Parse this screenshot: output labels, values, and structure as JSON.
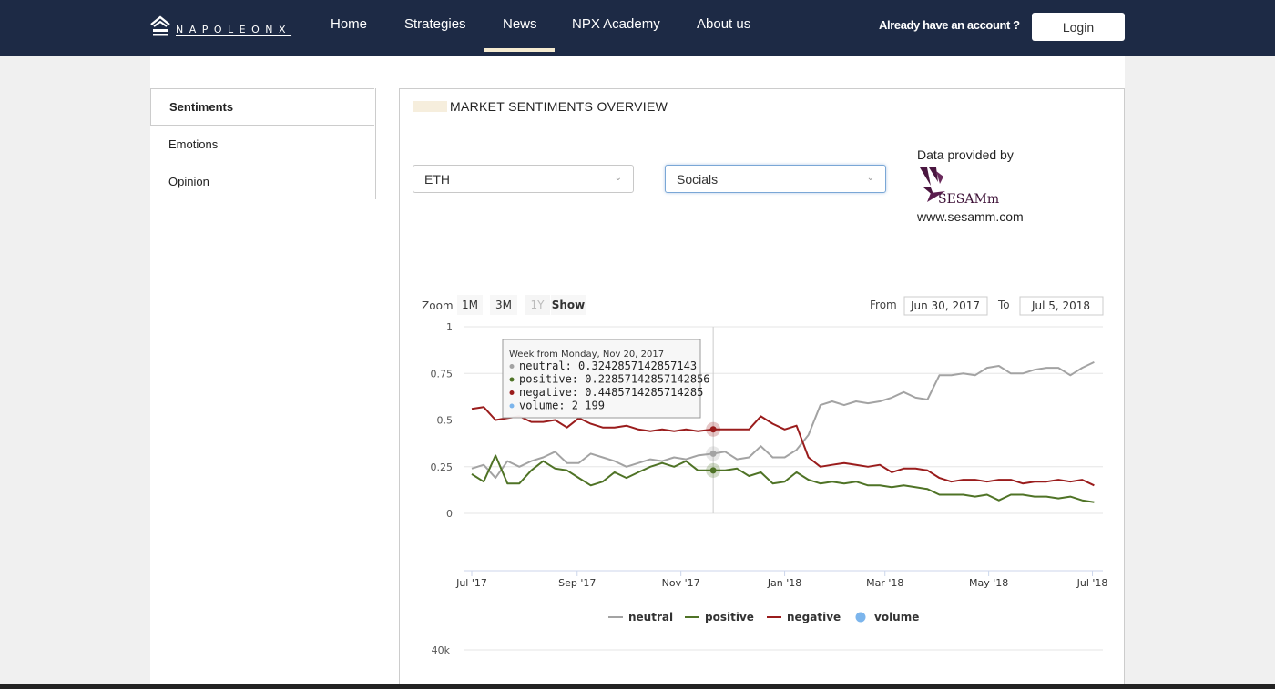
{
  "nav": {
    "logo_text": "NAPOLEONX",
    "items": [
      {
        "label": "Home"
      },
      {
        "label": "Strategies"
      },
      {
        "label": "News"
      },
      {
        "label": "NPX Academy"
      },
      {
        "label": "About us"
      }
    ],
    "active": "News",
    "account_text": "Already have an account ?",
    "login_label": "Login"
  },
  "sidebar": {
    "items": [
      {
        "label": "Sentiments"
      },
      {
        "label": "Emotions"
      },
      {
        "label": "Opinion"
      }
    ],
    "active": "Sentiments"
  },
  "panel": {
    "title": "MARKET SENTIMENTS OVERVIEW",
    "asset_select": {
      "value": "ETH"
    },
    "source_select": {
      "value": "Socials"
    },
    "provided_by": "Data provided by",
    "provider_logo_text": "SESAMm",
    "provider_url": "www.sesamm.com"
  },
  "chart_controls": {
    "zoom_label": "Zoom",
    "zoom_options": [
      "1M",
      "3M",
      "1Y",
      "Show"
    ],
    "zoom_disabled": "1Y",
    "from_label": "From",
    "from_value": "Jun 30, 2017",
    "to_label": "To",
    "to_value": "Jul 5, 2018"
  },
  "tooltip": {
    "header": "Week from Monday, Nov 20, 2017",
    "rows": [
      {
        "series": "neutral",
        "value": "0.3242857142857143"
      },
      {
        "series": "positive",
        "value": "0.22857142857142856"
      },
      {
        "series": "negative",
        "value": "0.4485714285714285"
      },
      {
        "series": "volume",
        "value": "2 199"
      }
    ]
  },
  "chart_data": {
    "type": "line",
    "ylim": [
      0,
      1
    ],
    "yticks": [
      "0",
      "0.25",
      "0.5",
      "0.75",
      "1"
    ],
    "x_range": [
      "2017-07-01",
      "2018-07-05"
    ],
    "xticks": [
      "Jul '17",
      "Sep '17",
      "Nov '17",
      "Jan '18",
      "Mar '18",
      "May '18",
      "Jul '18"
    ],
    "volume_axis_label": "40k",
    "colors": {
      "neutral": "#a3a3a3",
      "positive": "#4f7326",
      "negative": "#9a1c1c",
      "volume": "#7cb5ec"
    },
    "x": [
      "2017-07-01",
      "2017-07-08",
      "2017-07-15",
      "2017-07-22",
      "2017-07-29",
      "2017-08-05",
      "2017-08-12",
      "2017-08-19",
      "2017-08-26",
      "2017-09-02",
      "2017-09-09",
      "2017-09-16",
      "2017-09-23",
      "2017-09-30",
      "2017-10-07",
      "2017-10-14",
      "2017-10-21",
      "2017-10-28",
      "2017-11-04",
      "2017-11-11",
      "2017-11-20",
      "2017-11-27",
      "2017-12-04",
      "2017-12-11",
      "2017-12-18",
      "2017-12-25",
      "2018-01-01",
      "2018-01-08",
      "2018-01-15",
      "2018-01-22",
      "2018-01-29",
      "2018-02-05",
      "2018-02-12",
      "2018-02-19",
      "2018-02-26",
      "2018-03-05",
      "2018-03-12",
      "2018-03-19",
      "2018-03-26",
      "2018-04-02",
      "2018-04-09",
      "2018-04-16",
      "2018-04-23",
      "2018-04-30",
      "2018-05-07",
      "2018-05-14",
      "2018-05-21",
      "2018-05-28",
      "2018-06-04",
      "2018-06-11",
      "2018-06-18",
      "2018-06-25",
      "2018-07-02"
    ],
    "series": [
      {
        "name": "neutral",
        "values": [
          0.24,
          0.26,
          0.19,
          0.28,
          0.25,
          0.28,
          0.3,
          0.33,
          0.27,
          0.27,
          0.32,
          0.3,
          0.28,
          0.25,
          0.27,
          0.29,
          0.28,
          0.3,
          0.29,
          0.31,
          0.32,
          0.33,
          0.29,
          0.3,
          0.36,
          0.3,
          0.3,
          0.34,
          0.42,
          0.58,
          0.6,
          0.58,
          0.6,
          0.59,
          0.6,
          0.62,
          0.65,
          0.62,
          0.61,
          0.74,
          0.74,
          0.75,
          0.74,
          0.78,
          0.79,
          0.75,
          0.75,
          0.77,
          0.78,
          0.78,
          0.74,
          0.78,
          0.81
        ]
      },
      {
        "name": "positive",
        "values": [
          0.21,
          0.17,
          0.31,
          0.16,
          0.16,
          0.23,
          0.28,
          0.24,
          0.23,
          0.19,
          0.15,
          0.17,
          0.22,
          0.19,
          0.22,
          0.25,
          0.27,
          0.25,
          0.28,
          0.23,
          0.23,
          0.23,
          0.24,
          0.2,
          0.22,
          0.16,
          0.17,
          0.22,
          0.18,
          0.16,
          0.17,
          0.16,
          0.17,
          0.15,
          0.15,
          0.14,
          0.15,
          0.14,
          0.13,
          0.1,
          0.1,
          0.1,
          0.09,
          0.1,
          0.07,
          0.1,
          0.1,
          0.09,
          0.09,
          0.08,
          0.09,
          0.07,
          0.06
        ]
      },
      {
        "name": "negative",
        "values": [
          0.56,
          0.57,
          0.5,
          0.51,
          0.52,
          0.49,
          0.49,
          0.5,
          0.46,
          0.51,
          0.48,
          0.46,
          0.46,
          0.47,
          0.45,
          0.44,
          0.45,
          0.44,
          0.45,
          0.44,
          0.45,
          0.45,
          0.45,
          0.45,
          0.52,
          0.48,
          0.45,
          0.47,
          0.3,
          0.25,
          0.26,
          0.27,
          0.26,
          0.25,
          0.26,
          0.22,
          0.24,
          0.24,
          0.23,
          0.19,
          0.17,
          0.18,
          0.18,
          0.17,
          0.18,
          0.18,
          0.16,
          0.17,
          0.17,
          0.18,
          0.17,
          0.18,
          0.15
        ]
      }
    ],
    "hover_index": 20,
    "legend": [
      "neutral",
      "positive",
      "negative",
      "volume"
    ],
    "legend_position": "bottom"
  }
}
